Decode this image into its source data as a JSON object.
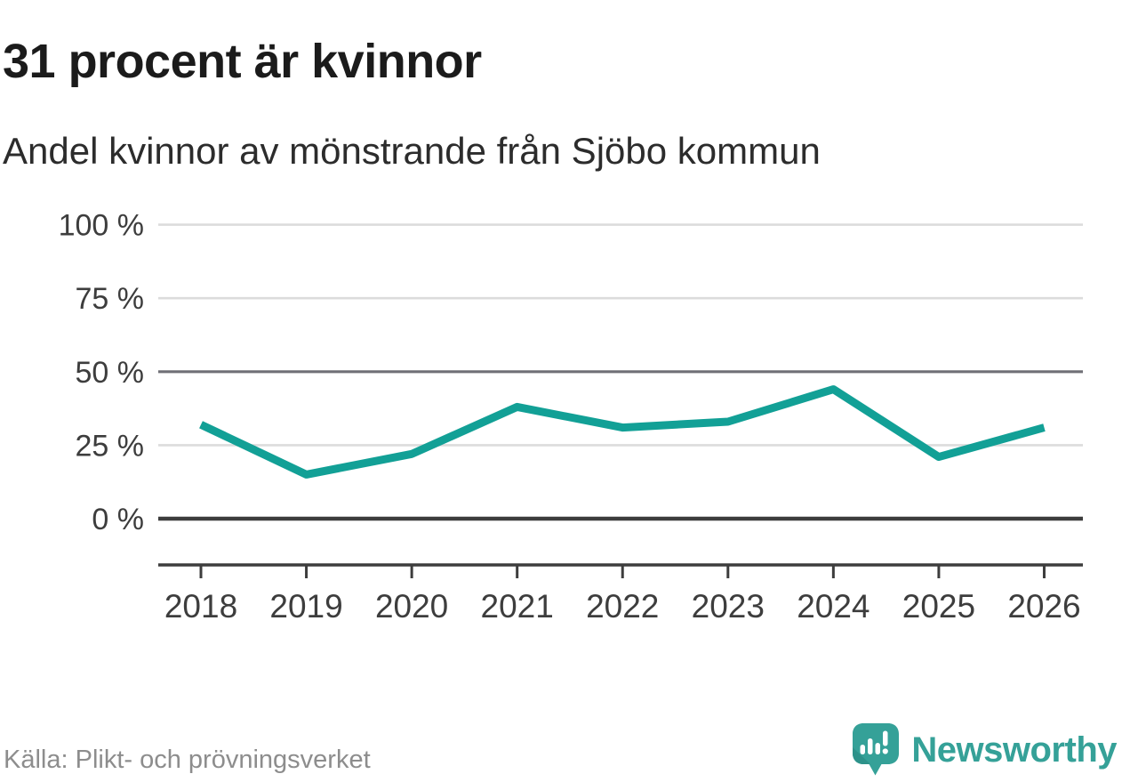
{
  "header": {
    "title": "31 procent är kvinnor",
    "subtitle": "Andel kvinnor av mönstrande från Sjöbo kommun"
  },
  "footer": {
    "source": "Källa: Plikt- och prövningsverket",
    "brand": "Newsworthy"
  },
  "colors": {
    "line": "#12a096",
    "grid_light": "#dcdcdc",
    "grid_medium": "#707077",
    "axis_dark": "#3d3d3d",
    "label": "#3d3d3d",
    "brand_teal": "#35a198",
    "source_gray": "#8d8d8d"
  },
  "chart_data": {
    "type": "line",
    "title": "31 procent är kvinnor",
    "subtitle": "Andel kvinnor av mönstrande från Sjöbo kommun",
    "categories": [
      "2018",
      "2019",
      "2020",
      "2021",
      "2022",
      "2023",
      "2024",
      "2025",
      "2026"
    ],
    "series": [
      {
        "name": "andel-kvinnor",
        "values": [
          32,
          15,
          22,
          38,
          31,
          33,
          44,
          21,
          31
        ]
      }
    ],
    "unit": "%",
    "ylim": [
      0,
      100
    ],
    "yticks": [
      {
        "value": 0,
        "label": "0 %",
        "style": "strong"
      },
      {
        "value": 25,
        "label": "25 %",
        "style": "light"
      },
      {
        "value": 50,
        "label": "50 %",
        "style": "medium"
      },
      {
        "value": 75,
        "label": "75 %",
        "style": "light"
      },
      {
        "value": 100,
        "label": "100 %",
        "style": "light"
      }
    ],
    "grid": true,
    "legend": "none",
    "source": "Källa: Plikt- och prövningsverket"
  }
}
